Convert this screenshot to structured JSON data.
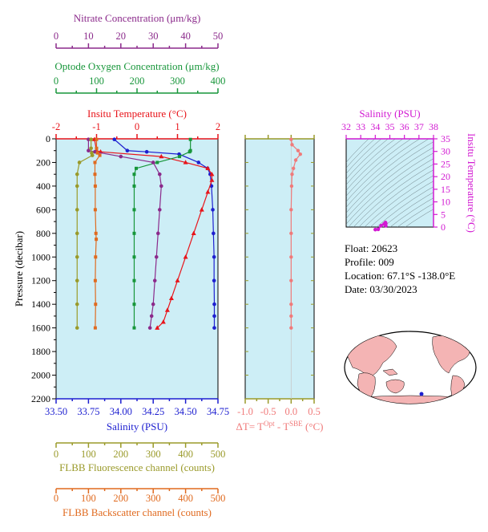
{
  "colors": {
    "nitrate": "#8b2a8b",
    "oxygen": "#17963a",
    "temperature": "#e8141a",
    "salinity": "#1d1fd0",
    "fluorescence": "#9a9a2a",
    "backscatter": "#e06a1f",
    "delta": "#f07a7a",
    "ts_axis": "#d21ad2",
    "panel_bg": "#cdeef6"
  },
  "info": {
    "float": "Float:  20623",
    "profile": "Profile:  009",
    "location": "Location:  67.1°S  -138.0°E",
    "date": "Date:  03/30/2023"
  },
  "chart_data": [
    {
      "type": "line",
      "panel": "main-profile",
      "ylabel": "Pressure (decibar)",
      "ylim": [
        0,
        2200
      ],
      "y_inverted": true,
      "y_ticks": [
        0,
        200,
        400,
        600,
        800,
        1000,
        1200,
        1400,
        1600,
        1800,
        2000,
        2200
      ],
      "axes": {
        "nitrate": {
          "label": "Nitrate Concentration (μm/kg)",
          "range": [
            0,
            50
          ],
          "ticks": [
            0,
            10,
            20,
            30,
            40,
            50
          ],
          "position": "top"
        },
        "oxygen": {
          "label": "Optode Oxygen Concentration (μm/kg)",
          "range": [
            0,
            400
          ],
          "ticks": [
            0,
            100,
            200,
            300,
            400
          ],
          "position": "top"
        },
        "temperature": {
          "label": "Insitu Temperature (°C)",
          "range": [
            -2,
            2
          ],
          "ticks": [
            -2,
            -1,
            0,
            1,
            2
          ],
          "position": "top"
        },
        "salinity": {
          "label": "Salinity (PSU)",
          "range": [
            33.5,
            34.75
          ],
          "ticks": [
            "33.50",
            "33.75",
            "34.00",
            "34.25",
            "34.50",
            "34.75"
          ],
          "position": "bottom"
        },
        "fluorescence": {
          "label": "FLBB Fluorescence channel (counts)",
          "range": [
            0,
            500
          ],
          "ticks": [
            0,
            100,
            200,
            300,
            400,
            500
          ],
          "position": "bottom"
        },
        "backscatter": {
          "label": "FLBB Backscatter channel (counts)",
          "range": [
            0,
            500
          ],
          "ticks": [
            0,
            100,
            200,
            300,
            400,
            500
          ],
          "position": "bottom"
        }
      },
      "series": [
        {
          "key": "salinity",
          "x": [
            33.95,
            34.05,
            34.2,
            34.45,
            34.6,
            34.67,
            34.69,
            34.7,
            34.71,
            34.715,
            34.72,
            34.72,
            34.722,
            34.722,
            34.722
          ],
          "y": [
            5,
            100,
            110,
            130,
            200,
            250,
            300,
            400,
            600,
            800,
            1000,
            1200,
            1400,
            1500,
            1600
          ]
        },
        {
          "key": "temperature",
          "x": [
            -1.05,
            -1.0,
            -0.9,
            0.6,
            1.2,
            1.75,
            1.85,
            1.85,
            1.75,
            1.6,
            1.4,
            1.2,
            1.0,
            0.85,
            0.75,
            0.65,
            0.5
          ],
          "y": [
            5,
            100,
            110,
            150,
            200,
            250,
            300,
            350,
            450,
            600,
            800,
            1000,
            1200,
            1350,
            1450,
            1550,
            1600
          ]
        },
        {
          "key": "oxygen",
          "x": [
            332,
            332,
            330,
            305,
            250,
            198,
            193,
            193,
            193,
            193,
            193,
            193,
            193,
            193
          ],
          "y": [
            5,
            100,
            110,
            150,
            200,
            250,
            300,
            400,
            600,
            800,
            1000,
            1200,
            1400,
            1600
          ]
        },
        {
          "key": "nitrate",
          "x": [
            10,
            10,
            12,
            20,
            30,
            32,
            32.5,
            32,
            31.5,
            31,
            30.5,
            30,
            29.5,
            29
          ],
          "y": [
            5,
            100,
            110,
            150,
            200,
            300,
            400,
            600,
            800,
            1000,
            1200,
            1400,
            1500,
            1600
          ]
        },
        {
          "key": "fluorescence",
          "x": [
            108,
            108,
            110,
            112,
            72,
            65,
            65,
            65,
            65,
            65,
            65,
            65,
            65
          ],
          "y": [
            5,
            80,
            120,
            140,
            200,
            300,
            400,
            600,
            800,
            1000,
            1200,
            1400,
            1600
          ]
        },
        {
          "key": "backscatter",
          "x": [
            125,
            125,
            128,
            135,
            120,
            120,
            121,
            121,
            123,
            124,
            122,
            121,
            122,
            121
          ],
          "y": [
            5,
            80,
            120,
            140,
            200,
            300,
            400,
            600,
            800,
            850,
            1000,
            1200,
            1400,
            1600
          ]
        }
      ]
    },
    {
      "type": "line",
      "panel": "delta-t",
      "xlabel": "ΔT= T^Opt - T^SBE (°C)",
      "xlim": [
        -1.0,
        0.5
      ],
      "x_ticks": [
        "-1.0",
        "-0.5",
        "0.0",
        "0.5"
      ],
      "ylim": [
        0,
        2200
      ],
      "series": [
        {
          "name": "",
          "x": [
            0.0,
            0.02,
            0.15,
            0.2,
            0.1,
            0.05,
            0.02,
            0.01,
            0.0,
            0.0,
            0.0,
            0.0,
            0.0,
            0.0,
            0.0
          ],
          "y": [
            5,
            50,
            100,
            130,
            180,
            250,
            300,
            400,
            600,
            800,
            1000,
            1200,
            1400,
            1500,
            1600
          ]
        }
      ]
    },
    {
      "type": "scatter",
      "panel": "ts-diagram",
      "xlabel": "Salinity (PSU)",
      "ylabel": "Insitu Temperature (°C)",
      "xlim": [
        32,
        38
      ],
      "ylim": [
        0,
        35
      ],
      "x_ticks": [
        32,
        33,
        34,
        35,
        36,
        37,
        38
      ],
      "y_ticks": [
        0,
        5,
        10,
        15,
        20,
        25,
        30,
        35
      ],
      "series": [
        {
          "name": "",
          "x": [
            34.0,
            34.2,
            34.4,
            34.6,
            34.7,
            34.72,
            34.72
          ],
          "y": [
            -1.0,
            -0.9,
            0.6,
            1.2,
            1.8,
            1.4,
            0.5
          ]
        }
      ]
    }
  ]
}
